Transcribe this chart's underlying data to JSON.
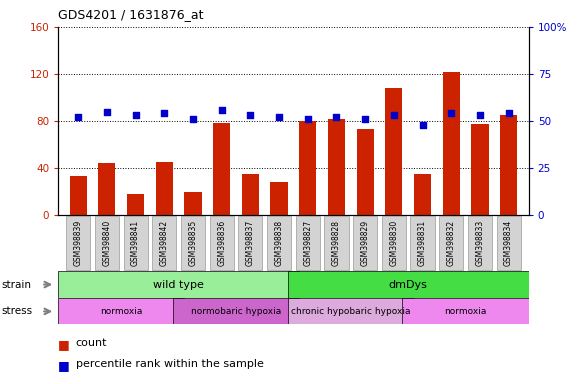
{
  "title": "GDS4201 / 1631876_at",
  "samples": [
    "GSM398839",
    "GSM398840",
    "GSM398841",
    "GSM398842",
    "GSM398835",
    "GSM398836",
    "GSM398837",
    "GSM398838",
    "GSM398827",
    "GSM398828",
    "GSM398829",
    "GSM398830",
    "GSM398831",
    "GSM398832",
    "GSM398833",
    "GSM398834"
  ],
  "counts": [
    33,
    44,
    18,
    45,
    20,
    78,
    35,
    28,
    80,
    82,
    73,
    108,
    35,
    122,
    77,
    85
  ],
  "percentile_ranks": [
    52,
    55,
    53,
    54,
    51,
    56,
    53,
    52,
    51,
    52,
    51,
    53,
    48,
    54,
    53,
    54
  ],
  "count_ylim": [
    0,
    160
  ],
  "percentile_ylim": [
    0,
    100
  ],
  "count_yticks": [
    0,
    40,
    80,
    120,
    160
  ],
  "percentile_yticks": [
    0,
    25,
    50,
    75,
    100
  ],
  "bar_color": "#cc2200",
  "dot_color": "#0000cc",
  "strain_groups": [
    {
      "label": "wild type",
      "start": 0,
      "end": 8,
      "color": "#99ee99"
    },
    {
      "label": "dmDys",
      "start": 8,
      "end": 16,
      "color": "#44dd44"
    }
  ],
  "stress_groups": [
    {
      "label": "normoxia",
      "start": 0,
      "end": 4,
      "color": "#ee88ee"
    },
    {
      "label": "normobaric hypoxia",
      "start": 4,
      "end": 8,
      "color": "#cc66cc"
    },
    {
      "label": "chronic hypobaric hypoxia",
      "start": 8,
      "end": 12,
      "color": "#ddaadd"
    },
    {
      "label": "normoxia",
      "start": 12,
      "end": 16,
      "color": "#ee88ee"
    }
  ],
  "background_color": "#ffffff",
  "tick_label_color_left": "#cc2200",
  "tick_label_color_right": "#0000cc",
  "legend_count_label": "count",
  "legend_pct_label": "percentile rank within the sample",
  "strain_label": "strain",
  "stress_label": "stress"
}
